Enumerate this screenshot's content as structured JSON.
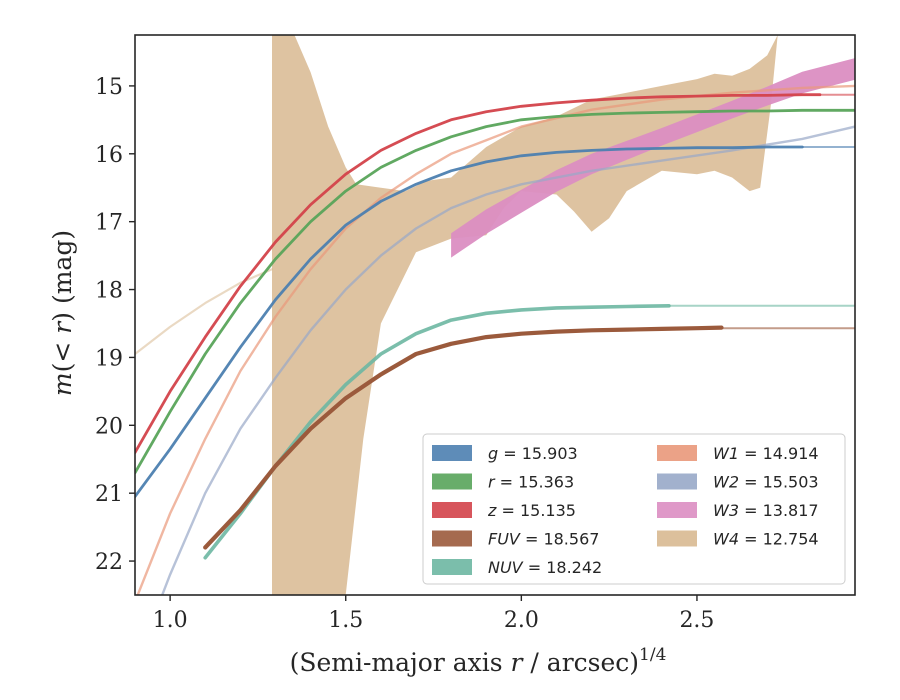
{
  "chart_data": {
    "type": "line",
    "xlabel": "(Semi-major axis r / arcsec)",
    "xlabel_prefix": "(Semi-major axis ",
    "xlabel_var": "r",
    "xlabel_suffix": " / arcsec)",
    "xlabel_exp": "1/4",
    "ylabel": "m(< r) (mag)",
    "ylabel_var": "m",
    "ylabel_mid": "(< ",
    "ylabel_var2": "r",
    "ylabel_suffix": ") (mag)",
    "xlim": [
      0.9,
      2.95
    ],
    "ylim": [
      22.5,
      14.25
    ],
    "y_inverted": true,
    "grid": false,
    "legend_position": "lower-right",
    "xticks": [
      1.0,
      1.5,
      2.0,
      2.5
    ],
    "xtick_labels": [
      "1.0",
      "1.5",
      "2.0",
      "2.5"
    ],
    "yticks": [
      15,
      16,
      17,
      18,
      19,
      20,
      21,
      22
    ],
    "ytick_labels": [
      "15",
      "16",
      "17",
      "18",
      "19",
      "20",
      "21",
      "22"
    ],
    "series": [
      {
        "key": "g",
        "name": "g",
        "value": "= 15.903",
        "color": "#4c7fb0",
        "x": [
          0.9,
          1.0,
          1.1,
          1.2,
          1.3,
          1.4,
          1.5,
          1.6,
          1.7,
          1.8,
          1.9,
          2.0,
          2.1,
          2.2,
          2.3,
          2.4,
          2.5,
          2.6,
          2.7,
          2.8
        ],
        "y": [
          21.05,
          20.35,
          19.6,
          18.85,
          18.15,
          17.55,
          17.05,
          16.7,
          16.45,
          16.25,
          16.12,
          16.03,
          15.98,
          15.95,
          15.93,
          15.92,
          15.91,
          15.91,
          15.9,
          15.9
        ],
        "halo": {
          "x": [
            2.8,
            2.95
          ],
          "y": [
            15.9,
            15.9
          ]
        }
      },
      {
        "key": "r",
        "name": "r",
        "value": "= 15.363",
        "color": "#58a45a",
        "x": [
          0.9,
          1.0,
          1.1,
          1.2,
          1.3,
          1.4,
          1.5,
          1.6,
          1.7,
          1.8,
          1.9,
          2.0,
          2.1,
          2.2,
          2.3,
          2.4,
          2.5,
          2.6,
          2.7,
          2.8,
          2.95
        ],
        "y": [
          20.7,
          19.8,
          18.95,
          18.2,
          17.55,
          17.0,
          16.55,
          16.2,
          15.95,
          15.75,
          15.6,
          15.5,
          15.45,
          15.42,
          15.4,
          15.39,
          15.38,
          15.37,
          15.37,
          15.36,
          15.36
        ]
      },
      {
        "key": "z",
        "name": "z",
        "value": "= 15.135",
        "color": "#d3424a",
        "x": [
          0.9,
          1.0,
          1.1,
          1.2,
          1.3,
          1.4,
          1.5,
          1.6,
          1.7,
          1.8,
          1.9,
          2.0,
          2.1,
          2.2,
          2.3,
          2.4,
          2.5,
          2.6,
          2.7,
          2.8,
          2.85
        ],
        "y": [
          20.4,
          19.5,
          18.7,
          17.95,
          17.3,
          16.75,
          16.3,
          15.95,
          15.7,
          15.5,
          15.38,
          15.3,
          15.25,
          15.21,
          15.18,
          15.16,
          15.15,
          15.14,
          15.14,
          15.13,
          15.13
        ],
        "halo": {
          "x": [
            2.85,
            2.95
          ],
          "y": [
            15.13,
            15.13
          ]
        }
      },
      {
        "key": "fuv",
        "name": "FUV",
        "value": "= 18.567",
        "color": "#9b5a3c",
        "x": [
          1.1,
          1.2,
          1.3,
          1.4,
          1.5,
          1.6,
          1.7,
          1.8,
          1.9,
          2.0,
          2.1,
          2.2,
          2.3,
          2.4,
          2.5,
          2.57
        ],
        "y": [
          21.8,
          21.25,
          20.6,
          20.05,
          19.6,
          19.25,
          18.95,
          18.8,
          18.7,
          18.65,
          18.62,
          18.6,
          18.59,
          18.58,
          18.57,
          18.56
        ],
        "halo": {
          "x": [
            2.57,
            2.95
          ],
          "y": [
            18.57,
            18.57
          ]
        }
      },
      {
        "key": "nuv",
        "name": "NUV",
        "value": "= 18.242",
        "color": "#6db7a2",
        "x": [
          1.1,
          1.2,
          1.3,
          1.4,
          1.5,
          1.6,
          1.7,
          1.8,
          1.9,
          2.0,
          2.1,
          2.2,
          2.3,
          2.42
        ],
        "y": [
          21.95,
          21.3,
          20.6,
          19.95,
          19.4,
          18.95,
          18.65,
          18.45,
          18.35,
          18.3,
          18.27,
          18.26,
          18.25,
          18.24
        ],
        "halo": {
          "x": [
            2.42,
            2.95
          ],
          "y": [
            18.24,
            18.24
          ]
        }
      },
      {
        "key": "w1",
        "name": "W1",
        "value": "= 14.914",
        "color": "#e9987a",
        "x": [
          0.9,
          1.0,
          1.1,
          1.2,
          1.3,
          1.4,
          1.5,
          1.6,
          1.7,
          1.8,
          1.9,
          2.0,
          2.2,
          2.4,
          2.6,
          2.8,
          2.95
        ],
        "y": [
          22.6,
          21.3,
          20.2,
          19.2,
          18.4,
          17.7,
          17.1,
          16.65,
          16.3,
          16.0,
          15.8,
          15.6,
          15.35,
          15.2,
          15.1,
          15.03,
          15.0
        ]
      },
      {
        "key": "w2",
        "name": "W2",
        "value": "= 15.503",
        "color": "#98a8c8",
        "x": [
          0.97,
          1.0,
          1.1,
          1.2,
          1.3,
          1.4,
          1.5,
          1.6,
          1.7,
          1.8,
          1.9,
          2.0,
          2.2,
          2.4,
          2.6,
          2.8,
          2.95
        ],
        "y": [
          22.6,
          22.2,
          21.0,
          20.05,
          19.3,
          18.6,
          18.0,
          17.5,
          17.1,
          16.8,
          16.6,
          16.45,
          16.25,
          16.1,
          15.95,
          15.78,
          15.6
        ]
      },
      {
        "key": "w3",
        "name": "W3",
        "value": "= 13.817",
        "color": "#db8ec2",
        "x": [
          1.8,
          1.9,
          2.0,
          2.1,
          2.2,
          2.3,
          2.4,
          2.5,
          2.6,
          2.7,
          2.8,
          2.95
        ],
        "y": [
          17.35,
          17.0,
          16.7,
          16.4,
          16.15,
          15.95,
          15.75,
          15.55,
          15.35,
          15.15,
          14.95,
          14.75
        ],
        "band_hw": [
          0.18,
          0.18,
          0.17,
          0.16,
          0.15,
          0.14,
          0.13,
          0.13,
          0.13,
          0.14,
          0.16,
          0.16
        ]
      },
      {
        "key": "w4",
        "name": "W4",
        "value": "= 12.754",
        "color": "#d8b991",
        "x": [
          0.9,
          1.0,
          1.1,
          1.2,
          1.29
        ],
        "y": [
          18.95,
          18.55,
          18.2,
          17.9,
          17.7
        ],
        "band": {
          "x_upper": [
            1.29,
            1.3,
            1.35,
            1.4,
            1.45,
            1.5,
            1.53,
            1.6,
            1.67,
            1.73,
            1.8,
            1.9,
            2.0,
            2.1,
            2.2,
            2.3,
            2.4,
            2.5,
            2.55,
            2.6,
            2.65,
            2.7,
            2.73
          ],
          "y_upper": [
            14.2,
            14.2,
            14.2,
            14.8,
            15.6,
            16.2,
            16.45,
            16.5,
            16.55,
            16.4,
            16.35,
            15.9,
            15.6,
            15.45,
            15.2,
            15.1,
            15.0,
            14.9,
            14.82,
            14.85,
            14.75,
            14.55,
            14.25
          ],
          "x_lower": [
            2.73,
            2.71,
            2.68,
            2.65,
            2.6,
            2.55,
            2.5,
            2.4,
            2.3,
            2.25,
            2.2,
            2.15,
            2.1,
            2.0,
            1.95,
            1.9,
            1.8,
            1.7,
            1.6,
            1.55,
            1.5,
            1.29
          ],
          "y_lower": [
            14.25,
            15.3,
            16.5,
            16.55,
            16.35,
            16.25,
            16.3,
            16.25,
            16.55,
            16.95,
            17.15,
            16.85,
            16.6,
            16.55,
            16.8,
            17.2,
            17.25,
            17.45,
            18.5,
            20.2,
            22.5,
            22.5
          ]
        }
      }
    ]
  }
}
